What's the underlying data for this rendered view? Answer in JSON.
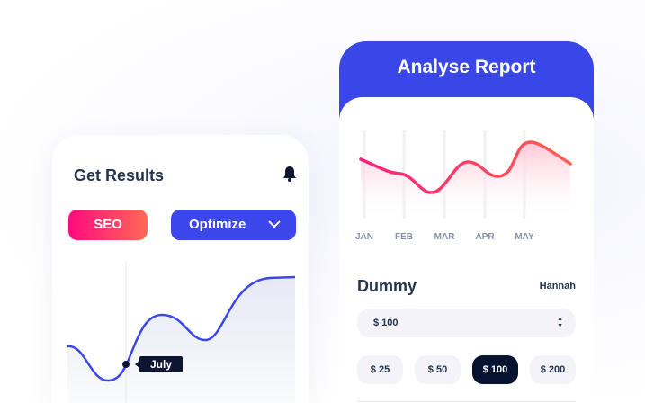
{
  "left_card": {
    "title": "Get Results",
    "icon": "bell-icon",
    "seo_label": "SEO",
    "optimize_label": "Optimize",
    "tooltip": "July"
  },
  "right_card": {
    "title": "Analyse Report",
    "months": [
      "JAN",
      "FEB",
      "MAR",
      "APR",
      "MAY"
    ],
    "name": "Dummy",
    "user": "Hannah",
    "select_value": "$ 100",
    "amounts": [
      "$ 25",
      "$ 50",
      "$ 100",
      "$ 200"
    ],
    "selected_amount": "$ 100"
  },
  "colors": {
    "primary": "#3a47e8",
    "pink": "#ff0a7f",
    "coral": "#ff6a55",
    "dark": "#051330",
    "text": "#243550"
  }
}
